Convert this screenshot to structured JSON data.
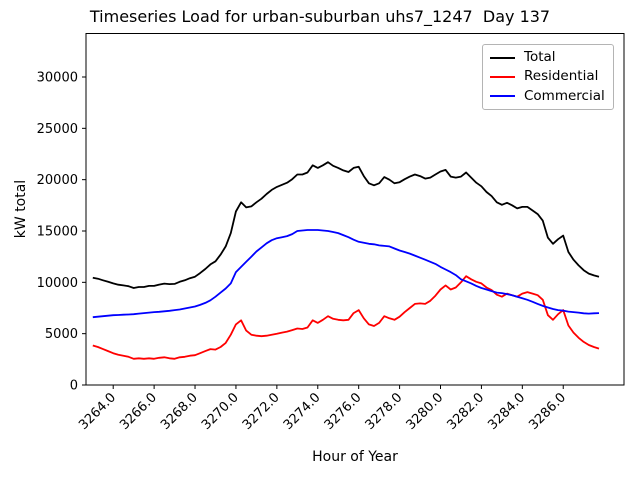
{
  "chart_data": {
    "type": "line",
    "title": "Timeseries Load for urban-suburban uhs7_1247  Day 137",
    "xlabel": "Hour of Year",
    "ylabel": "kW total",
    "background": "#ffffff",
    "grid": false,
    "xlim": [
      3262.67,
      3288.97
    ],
    "ylim": [
      0,
      34237
    ],
    "xticks": [
      3264.0,
      3266.0,
      3268.0,
      3270.0,
      3272.0,
      3274.0,
      3276.0,
      3278.0,
      3280.0,
      3282.0,
      3284.0,
      3286.0
    ],
    "xtick_labels": [
      "3264.0",
      "3266.0",
      "3268.0",
      "3270.0",
      "3272.0",
      "3274.0",
      "3276.0",
      "3278.0",
      "3280.0",
      "3282.0",
      "3284.0",
      "3286.0"
    ],
    "yticks": [
      0,
      5000,
      10000,
      15000,
      20000,
      25000,
      30000
    ],
    "ytick_labels": [
      "0",
      "5000",
      "10000",
      "15000",
      "20000",
      "25000",
      "30000"
    ],
    "x_start": 3263.0,
    "x_step": 0.25,
    "legend": {
      "position": "upper right",
      "entries": [
        "Total",
        "Residential",
        "Commercial"
      ]
    },
    "series": [
      {
        "name": "Total",
        "color": "#000000",
        "values": [
          10450,
          10350,
          10200,
          10050,
          9900,
          9770,
          9700,
          9620,
          9450,
          9550,
          9550,
          9650,
          9650,
          9780,
          9880,
          9830,
          9850,
          10050,
          10200,
          10400,
          10550,
          10900,
          11300,
          11750,
          12050,
          12700,
          13500,
          14800,
          16900,
          17800,
          17300,
          17400,
          17800,
          18150,
          18600,
          19000,
          19300,
          19500,
          19700,
          20050,
          20500,
          20500,
          20700,
          21400,
          21150,
          21400,
          21700,
          21350,
          21150,
          20900,
          20750,
          21150,
          21250,
          20350,
          19650,
          19450,
          19650,
          20250,
          20000,
          19650,
          19750,
          20050,
          20300,
          20500,
          20350,
          20100,
          20200,
          20500,
          20800,
          20950,
          20300,
          20200,
          20300,
          20700,
          20200,
          19700,
          19350,
          18800,
          18400,
          17800,
          17550,
          17750,
          17500,
          17200,
          17350,
          17350,
          17000,
          16650,
          16000,
          14350,
          13750,
          14200,
          14550,
          12950,
          12200,
          11650,
          11180,
          10850,
          10680,
          10550
        ]
      },
      {
        "name": "Residential",
        "color": "#ff0000",
        "values": [
          3850,
          3700,
          3500,
          3300,
          3100,
          2950,
          2850,
          2750,
          2550,
          2600,
          2550,
          2600,
          2550,
          2650,
          2700,
          2600,
          2550,
          2700,
          2750,
          2850,
          2900,
          3100,
          3300,
          3500,
          3450,
          3700,
          4100,
          4900,
          5900,
          6300,
          5300,
          4900,
          4800,
          4750,
          4800,
          4900,
          5000,
          5100,
          5200,
          5350,
          5500,
          5450,
          5600,
          6300,
          6050,
          6350,
          6700,
          6450,
          6350,
          6300,
          6350,
          7000,
          7300,
          6500,
          5900,
          5750,
          6050,
          6700,
          6500,
          6350,
          6650,
          7100,
          7500,
          7900,
          7950,
          7900,
          8200,
          8700,
          9300,
          9700,
          9300,
          9500,
          10000,
          10600,
          10300,
          10050,
          9900,
          9500,
          9250,
          8800,
          8600,
          8900,
          8750,
          8600,
          8900,
          9050,
          8900,
          8750,
          8300,
          6800,
          6350,
          6900,
          7300,
          5800,
          5100,
          4600,
          4200,
          3900,
          3700,
          3550
        ]
      },
      {
        "name": "Commercial",
        "color": "#0000ff",
        "values": [
          6600,
          6650,
          6700,
          6750,
          6800,
          6820,
          6850,
          6870,
          6900,
          6950,
          7000,
          7050,
          7100,
          7130,
          7180,
          7230,
          7300,
          7350,
          7450,
          7550,
          7650,
          7800,
          8000,
          8250,
          8600,
          9000,
          9400,
          9900,
          11000,
          11500,
          12000,
          12500,
          13000,
          13400,
          13800,
          14100,
          14300,
          14400,
          14500,
          14700,
          15000,
          15050,
          15100,
          15100,
          15100,
          15050,
          15000,
          14900,
          14800,
          14600,
          14400,
          14150,
          13950,
          13850,
          13750,
          13700,
          13600,
          13550,
          13500,
          13300,
          13100,
          12950,
          12800,
          12600,
          12400,
          12200,
          12000,
          11800,
          11500,
          11250,
          11000,
          10700,
          10300,
          10100,
          9900,
          9650,
          9450,
          9300,
          9150,
          9000,
          8950,
          8850,
          8750,
          8600,
          8450,
          8300,
          8100,
          7900,
          7700,
          7550,
          7400,
          7300,
          7250,
          7150,
          7100,
          7050,
          6980,
          6950,
          6980,
          7000
        ]
      }
    ]
  }
}
